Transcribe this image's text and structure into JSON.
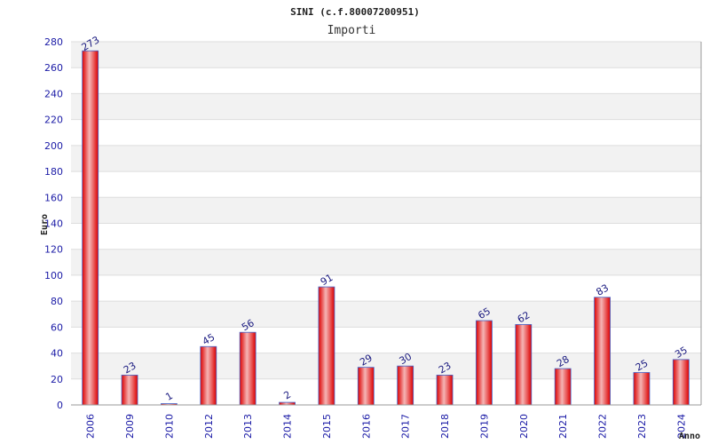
{
  "chart_data": {
    "type": "bar",
    "title": "SINI (c.f.80007200951)",
    "subtitle": "Importi",
    "xlabel": "Anno",
    "ylabel": "Euro",
    "ylim": [
      0,
      280
    ],
    "yticks": [
      0,
      20,
      40,
      60,
      80,
      100,
      120,
      140,
      160,
      180,
      200,
      220,
      240,
      260,
      280
    ],
    "grid": true,
    "categories": [
      "2006",
      "2009",
      "2010",
      "2012",
      "2013",
      "2014",
      "2015",
      "2016",
      "2017",
      "2018",
      "2019",
      "2020",
      "2021",
      "2022",
      "2023",
      "2024"
    ],
    "values": [
      273,
      23,
      1,
      45,
      56,
      2,
      91,
      29,
      30,
      23,
      65,
      62,
      28,
      83,
      25,
      35
    ],
    "colors": {
      "bar_center": "#f5b5b5",
      "bar_edge": "#dd0000",
      "bar_stroke": "#4466cc",
      "band": "#f2f2f2",
      "grid": "#dddddd",
      "tick": "#1a1aa6"
    }
  }
}
